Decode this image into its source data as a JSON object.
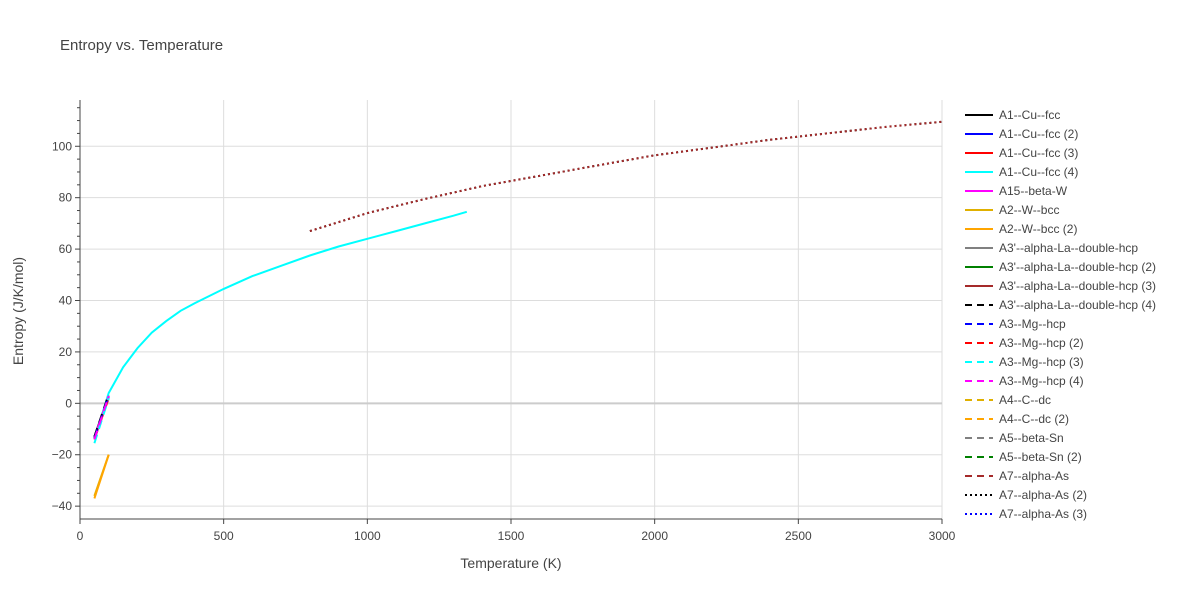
{
  "chart_data": {
    "type": "line",
    "title": "Entropy vs. Temperature",
    "xlabel": "Temperature (K)",
    "ylabel": "Entropy (J/K/mol)",
    "xlim": [
      0,
      3000
    ],
    "ylim": [
      -45,
      118
    ],
    "xticks": [
      0,
      500,
      1000,
      1500,
      2000,
      2500,
      3000
    ],
    "xtick_labels": [
      "0",
      "500",
      "1000",
      "1500",
      "2000",
      "2500",
      "3000"
    ],
    "yticks": [
      -40,
      -20,
      0,
      20,
      40,
      60,
      80,
      100
    ],
    "ytick_labels": [
      "−40",
      "−20",
      "0",
      "20",
      "40",
      "60",
      "80",
      "100"
    ],
    "grid": true,
    "legend_position": "right",
    "series": [
      {
        "name": "A1--Cu--fcc",
        "color": "#000000",
        "dash": "solid",
        "x": [
          50,
          100
        ],
        "y": [
          -13,
          3
        ]
      },
      {
        "name": "A1--Cu--fcc (2)",
        "color": "#0000ff",
        "dash": "solid",
        "x": [
          50,
          100
        ],
        "y": [
          -13.5,
          2.5
        ]
      },
      {
        "name": "A1--Cu--fcc (3)",
        "color": "#ff0000",
        "dash": "solid",
        "x": [
          50,
          100
        ],
        "y": [
          -14,
          2
        ]
      },
      {
        "name": "A1--Cu--fcc (4)",
        "color": "#00ffff",
        "dash": "solid",
        "x": [
          50,
          100,
          150,
          200,
          250,
          300,
          350,
          400,
          500,
          600,
          700,
          800,
          900,
          1000,
          1100,
          1200,
          1300,
          1346
        ],
        "y": [
          -14,
          4,
          14,
          21.5,
          27.5,
          32,
          36,
          39,
          44.5,
          49.5,
          53.5,
          57.5,
          61,
          64,
          67,
          70,
          73,
          74.5
        ]
      },
      {
        "name": "A15--beta-W",
        "color": "#ff00ff",
        "dash": "solid",
        "x": [
          50,
          100
        ],
        "y": [
          -13.5,
          2.8
        ]
      },
      {
        "name": "A2--W--bcc",
        "color": "#e0b000",
        "dash": "solid",
        "x": [
          50,
          100
        ],
        "y": [
          -36,
          -20
        ]
      },
      {
        "name": "A2--W--bcc (2)",
        "color": "#ffa500",
        "dash": "solid",
        "x": [
          50,
          100
        ],
        "y": [
          -37,
          -20
        ]
      },
      {
        "name": "A3'--alpha-La--double-hcp",
        "color": "#808080",
        "dash": "solid",
        "x": [],
        "y": []
      },
      {
        "name": "A3'--alpha-La--double-hcp (2)",
        "color": "#008000",
        "dash": "solid",
        "x": [],
        "y": []
      },
      {
        "name": "A3'--alpha-La--double-hcp (3)",
        "color": "#a52a2a",
        "dash": "solid",
        "x": [],
        "y": []
      },
      {
        "name": "A3'--alpha-La--double-hcp (4)",
        "color": "#000000",
        "dash": "dash",
        "x": [
          50,
          100
        ],
        "y": [
          -13,
          3.5
        ]
      },
      {
        "name": "A3--Mg--hcp",
        "color": "#0000ff",
        "dash": "dash",
        "x": [
          50,
          100
        ],
        "y": [
          -13.5,
          3
        ]
      },
      {
        "name": "A3--Mg--hcp (2)",
        "color": "#ff0000",
        "dash": "dash",
        "x": [
          50,
          100
        ],
        "y": [
          -14,
          2.5
        ]
      },
      {
        "name": "A3--Mg--hcp (3)",
        "color": "#00ffff",
        "dash": "dash",
        "x": [
          50,
          100
        ],
        "y": [
          -15.5,
          2
        ]
      },
      {
        "name": "A3--Mg--hcp (4)",
        "color": "#ff00ff",
        "dash": "dash",
        "x": [
          50,
          100
        ],
        "y": [
          -14,
          2.8
        ]
      },
      {
        "name": "A4--C--dc",
        "color": "#e0b000",
        "dash": "dash",
        "x": [],
        "y": []
      },
      {
        "name": "A4--C--dc (2)",
        "color": "#ffa500",
        "dash": "dash",
        "x": [],
        "y": []
      },
      {
        "name": "A5--beta-Sn",
        "color": "#808080",
        "dash": "dash",
        "x": [],
        "y": []
      },
      {
        "name": "A5--beta-Sn (2)",
        "color": "#008000",
        "dash": "dash",
        "x": [],
        "y": []
      },
      {
        "name": "A7--alpha-As",
        "color": "#a52a2a",
        "dash": "dash",
        "x": [],
        "y": []
      },
      {
        "name": "A7--alpha-As (2)",
        "color": "#000000",
        "dash": "dot",
        "x": [
          800,
          1000,
          1200,
          1400,
          1600,
          1800,
          2000,
          2200,
          2400,
          2600,
          2800,
          3000
        ],
        "y": [
          67,
          74,
          79.5,
          84.5,
          88.5,
          92.5,
          96.5,
          99.5,
          102.5,
          105,
          107.5,
          109.5
        ]
      },
      {
        "name": "A7--alpha-As (3)",
        "color": "#0000ff",
        "dash": "dot",
        "x": [],
        "y": []
      },
      {
        "name": "",
        "color": "#a52a2a",
        "dash": "dot",
        "legend": false,
        "x": [
          800,
          1000,
          1200,
          1400,
          1600,
          1800,
          2000,
          2200,
          2400,
          2600,
          2800,
          3000
        ],
        "y": [
          67,
          74,
          79.5,
          84.5,
          88.5,
          92.5,
          96.5,
          99.5,
          102.5,
          105,
          107.5,
          109.5
        ]
      }
    ]
  }
}
